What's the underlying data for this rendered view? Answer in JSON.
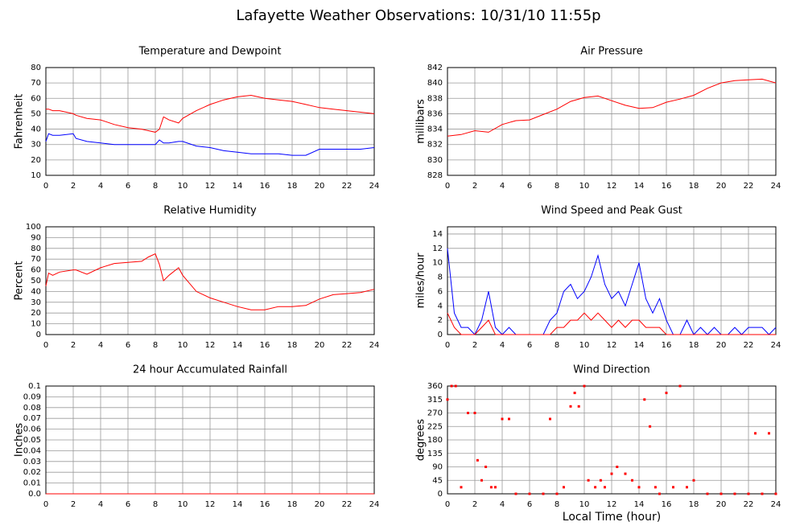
{
  "title": "Lafayette Weather Observations: 10/31/10 11:55p",
  "chart_data": [
    {
      "type": "line",
      "title": "Temperature and Dewpoint",
      "ylabel": "Fahrenheit",
      "x": [
        0,
        0.2,
        0.5,
        1,
        2,
        2.2,
        3,
        4,
        5,
        6,
        7,
        7.5,
        8,
        8.3,
        8.6,
        9,
        9.7,
        10,
        11,
        12,
        13,
        14,
        15,
        16,
        17,
        18,
        19,
        20,
        21,
        22,
        23,
        24
      ],
      "series": [
        {
          "color": "#ff0000",
          "values": [
            53,
            53,
            52,
            52,
            50,
            49,
            47,
            46,
            43,
            41,
            40,
            39,
            38,
            40,
            48,
            46,
            44,
            47,
            52,
            56,
            59,
            61,
            62,
            60,
            59,
            58,
            56,
            54,
            53,
            52,
            51,
            50
          ]
        },
        {
          "color": "#0000ff",
          "values": [
            32,
            37,
            36,
            36,
            37,
            34,
            32,
            31,
            30,
            30,
            30,
            30,
            30,
            33,
            31,
            31,
            32,
            32,
            29,
            28,
            26,
            25,
            24,
            24,
            24,
            23,
            23,
            27,
            27,
            27,
            27,
            28
          ]
        }
      ],
      "xlim": [
        0,
        24
      ],
      "xticks": [
        0,
        2,
        4,
        6,
        8,
        10,
        12,
        14,
        16,
        18,
        20,
        22,
        24
      ],
      "ylim": [
        10,
        80
      ],
      "yticks": [
        10,
        20,
        30,
        40,
        50,
        60,
        70,
        80
      ],
      "grid": true
    },
    {
      "type": "line",
      "title": "Air Pressure",
      "ylabel": "millibars",
      "x": [
        0,
        1,
        2,
        3,
        4,
        5,
        6,
        7,
        8,
        9,
        10,
        11,
        12,
        13,
        14,
        15,
        16,
        17,
        18,
        19,
        20,
        21,
        22,
        23,
        24
      ],
      "series": [
        {
          "color": "#ff0000",
          "values": [
            833.1,
            833.3,
            833.8,
            833.6,
            834.6,
            835.1,
            835.2,
            835.9,
            836.6,
            837.6,
            838.1,
            838.3,
            837.7,
            837.1,
            836.7,
            836.8,
            837.5,
            837.9,
            838.4,
            839.3,
            840.0,
            840.3,
            840.4,
            840.5,
            840.0
          ]
        }
      ],
      "xlim": [
        0,
        24
      ],
      "xticks": [
        0,
        2,
        4,
        6,
        8,
        10,
        12,
        14,
        16,
        18,
        20,
        22,
        24
      ],
      "ylim": [
        828,
        842
      ],
      "yticks": [
        828,
        830,
        832,
        834,
        836,
        838,
        840,
        842
      ],
      "grid": true
    },
    {
      "type": "line",
      "title": "Relative Humidity",
      "ylabel": "Percent",
      "x": [
        0,
        0.2,
        0.5,
        1,
        2,
        2.2,
        3,
        4,
        5,
        6,
        7,
        7.5,
        8,
        8.3,
        8.6,
        9,
        9.7,
        10,
        11,
        12,
        13,
        14,
        15,
        16,
        17,
        18,
        19,
        20,
        21,
        22,
        23,
        24
      ],
      "series": [
        {
          "color": "#ff0000",
          "values": [
            45,
            57,
            55,
            58,
            60,
            60,
            56,
            62,
            66,
            67,
            68,
            72,
            75,
            65,
            50,
            55,
            62,
            55,
            40,
            34,
            30,
            26,
            23,
            23,
            26,
            26,
            27,
            33,
            37,
            38,
            39,
            42
          ]
        }
      ],
      "xlim": [
        0,
        24
      ],
      "xticks": [
        0,
        2,
        4,
        6,
        8,
        10,
        12,
        14,
        16,
        18,
        20,
        22,
        24
      ],
      "ylim": [
        0,
        100
      ],
      "yticks": [
        0,
        10,
        20,
        30,
        40,
        50,
        60,
        70,
        80,
        90,
        100
      ],
      "grid": true
    },
    {
      "type": "line",
      "title": "Wind Speed and Peak Gust",
      "ylabel": "miles/hour",
      "x": [
        0,
        0.5,
        1,
        1.5,
        2,
        2.5,
        3,
        3.5,
        4,
        4.5,
        5,
        5.5,
        6,
        6.5,
        7,
        7.5,
        8,
        8.5,
        9,
        9.5,
        10,
        10.5,
        11,
        11.5,
        12,
        12.5,
        13,
        13.5,
        14,
        14.5,
        15,
        15.5,
        16,
        16.5,
        17,
        17.5,
        18,
        18.5,
        19,
        19.5,
        20,
        20.5,
        21,
        21.5,
        22,
        22.5,
        23,
        23.5,
        24
      ],
      "series": [
        {
          "color": "#0000ff",
          "values": [
            12,
            3,
            1,
            1,
            0,
            2,
            6,
            1,
            0,
            1,
            0,
            0,
            0,
            0,
            0,
            2,
            3,
            6,
            7,
            5,
            6,
            8,
            11,
            7,
            5,
            6,
            4,
            7,
            10,
            5,
            3,
            5,
            2,
            0,
            0,
            2,
            0,
            1,
            0,
            1,
            0,
            0,
            1,
            0,
            1,
            1,
            1,
            0,
            1
          ]
        },
        {
          "color": "#ff0000",
          "values": [
            3,
            1,
            0,
            0,
            0,
            1,
            2,
            0,
            0,
            0,
            0,
            0,
            0,
            0,
            0,
            0,
            1,
            1,
            2,
            2,
            3,
            2,
            3,
            2,
            1,
            2,
            1,
            2,
            2,
            1,
            1,
            1,
            0,
            0,
            0,
            0,
            0,
            0,
            0,
            0,
            0,
            0,
            0,
            0,
            0,
            0,
            0,
            0,
            0
          ]
        }
      ],
      "xlim": [
        0,
        24
      ],
      "xticks": [
        0,
        2,
        4,
        6,
        8,
        10,
        12,
        14,
        16,
        18,
        20,
        22,
        24
      ],
      "ylim": [
        0,
        15
      ],
      "yticks": [
        0,
        2,
        4,
        6,
        8,
        10,
        12,
        14
      ],
      "grid": true
    },
    {
      "type": "line",
      "title": "24 hour Accumulated Rainfall",
      "ylabel": "Inches",
      "x": [
        0,
        24
      ],
      "series": [
        {
          "color": "#ff0000",
          "values": [
            0,
            0
          ]
        }
      ],
      "xlim": [
        0,
        24
      ],
      "xticks": [
        0,
        2,
        4,
        6,
        8,
        10,
        12,
        14,
        16,
        18,
        20,
        22,
        24
      ],
      "ylim": [
        0,
        0.1
      ],
      "yticks": [
        {
          "value": 0,
          "label": "0.0"
        },
        0.01,
        0.02,
        0.03,
        0.04,
        0.05,
        0.06,
        0.07,
        0.08,
        0.09,
        0.1
      ],
      "grid": true
    },
    {
      "type": "scatter",
      "title": "Wind Direction",
      "ylabel": "degrees",
      "xlabel": "Local Time (hour)",
      "x": [
        0,
        0.3,
        0.6,
        1,
        1.5,
        2,
        2.2,
        2.5,
        2.8,
        3.2,
        3.5,
        4,
        4.5,
        5,
        6,
        7,
        7.5,
        8,
        8.5,
        9,
        9.3,
        9.6,
        10,
        10.3,
        10.8,
        11.2,
        11.5,
        12,
        12.4,
        13,
        13.5,
        14,
        14.4,
        14.8,
        15.2,
        15.5,
        16,
        16.5,
        17,
        17.5,
        18,
        19,
        20,
        21,
        22,
        22.5,
        23,
        23.5,
        24
      ],
      "series": [
        {
          "color": "#ff0000",
          "values": [
            315,
            360,
            360,
            22,
            270,
            270,
            112,
            45,
            90,
            22,
            22,
            250,
            250,
            0,
            0,
            0,
            250,
            0,
            22,
            292,
            337,
            292,
            360,
            45,
            22,
            45,
            22,
            67,
            90,
            67,
            45,
            22,
            315,
            225,
            22,
            0,
            337,
            22,
            360,
            22,
            45,
            0,
            0,
            0,
            0,
            202,
            0,
            202,
            0
          ]
        }
      ],
      "xlim": [
        0,
        24
      ],
      "xticks": [
        0,
        2,
        4,
        6,
        8,
        10,
        12,
        14,
        16,
        18,
        20,
        22,
        24
      ],
      "ylim": [
        0,
        360
      ],
      "yticks": [
        0,
        45,
        90,
        135,
        180,
        225,
        270,
        315,
        360
      ],
      "grid": true
    }
  ]
}
